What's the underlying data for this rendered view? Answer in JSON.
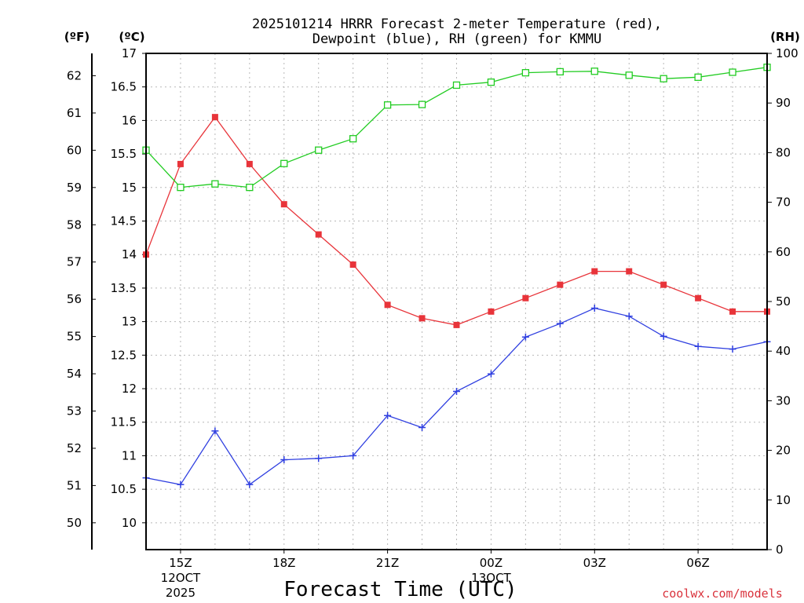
{
  "chart_data": {
    "type": "line",
    "title_line1": "2025101214 HRRR Forecast 2-meter Temperature (red),",
    "title_line2": "Dewpoint (blue), RH (green) for KMMU",
    "unit_f": "(ºF)",
    "unit_c": "(ºC)",
    "unit_rh": "(RH)",
    "xlabel": "Forecast Time (UTC)",
    "credit": "coolwx.com/models",
    "x_hours": [
      14,
      15,
      16,
      17,
      18,
      19,
      20,
      21,
      22,
      23,
      24,
      25,
      26,
      27,
      28,
      29,
      30,
      31,
      32
    ],
    "xlim": [
      14,
      32
    ],
    "x_ticks": [
      {
        "hour": 15,
        "lines": [
          "15Z",
          "12OCT",
          "2025"
        ]
      },
      {
        "hour": 18,
        "lines": [
          "18Z"
        ]
      },
      {
        "hour": 21,
        "lines": [
          "21Z"
        ]
      },
      {
        "hour": 24,
        "lines": [
          "00Z",
          "13OCT"
        ]
      },
      {
        "hour": 27,
        "lines": [
          "03Z"
        ]
      },
      {
        "hour": 30,
        "lines": [
          "06Z"
        ]
      }
    ],
    "left_axis_c": {
      "ylim": [
        9.6,
        17.0
      ],
      "ticks": [
        "10",
        "10.5",
        "11",
        "11.5",
        "12",
        "12.5",
        "13",
        "13.5",
        "14",
        "14.5",
        "15",
        "15.5",
        "16",
        "16.5",
        "17"
      ]
    },
    "left_axis_f": {
      "ticks": [
        "50",
        "51",
        "52",
        "53",
        "54",
        "55",
        "56",
        "57",
        "58",
        "59",
        "60",
        "61",
        "62"
      ]
    },
    "right_axis_rh": {
      "ylim": [
        0,
        100
      ],
      "ticks": [
        "0",
        "10",
        "20",
        "30",
        "40",
        "50",
        "60",
        "70",
        "80",
        "90",
        "100"
      ]
    },
    "series": [
      {
        "name": "Temperature",
        "axis": "celsius",
        "color": "#e8343a",
        "marker": "filled-square",
        "values": [
          14.0,
          15.35,
          16.05,
          15.35,
          14.75,
          14.3,
          13.85,
          13.25,
          13.05,
          12.95,
          13.15,
          13.35,
          13.55,
          13.75,
          13.75,
          13.55,
          13.35,
          13.15,
          13.15
        ]
      },
      {
        "name": "Dewpoint",
        "axis": "celsius",
        "color": "#2f3fe0",
        "marker": "plus",
        "values": [
          10.67,
          10.57,
          11.37,
          10.57,
          10.94,
          10.96,
          11.0,
          11.6,
          11.42,
          11.96,
          12.22,
          12.77,
          12.97,
          13.2,
          13.08,
          12.78,
          12.63,
          12.59,
          12.7
        ]
      },
      {
        "name": "RH",
        "axis": "rh",
        "color": "#22cc22",
        "marker": "open-square",
        "values": [
          80.5,
          73.0,
          73.7,
          73.0,
          77.8,
          80.5,
          82.8,
          89.6,
          89.7,
          93.6,
          94.2,
          96.1,
          96.3,
          96.4,
          95.6,
          94.9,
          95.2,
          96.2,
          97.2
        ]
      }
    ]
  }
}
